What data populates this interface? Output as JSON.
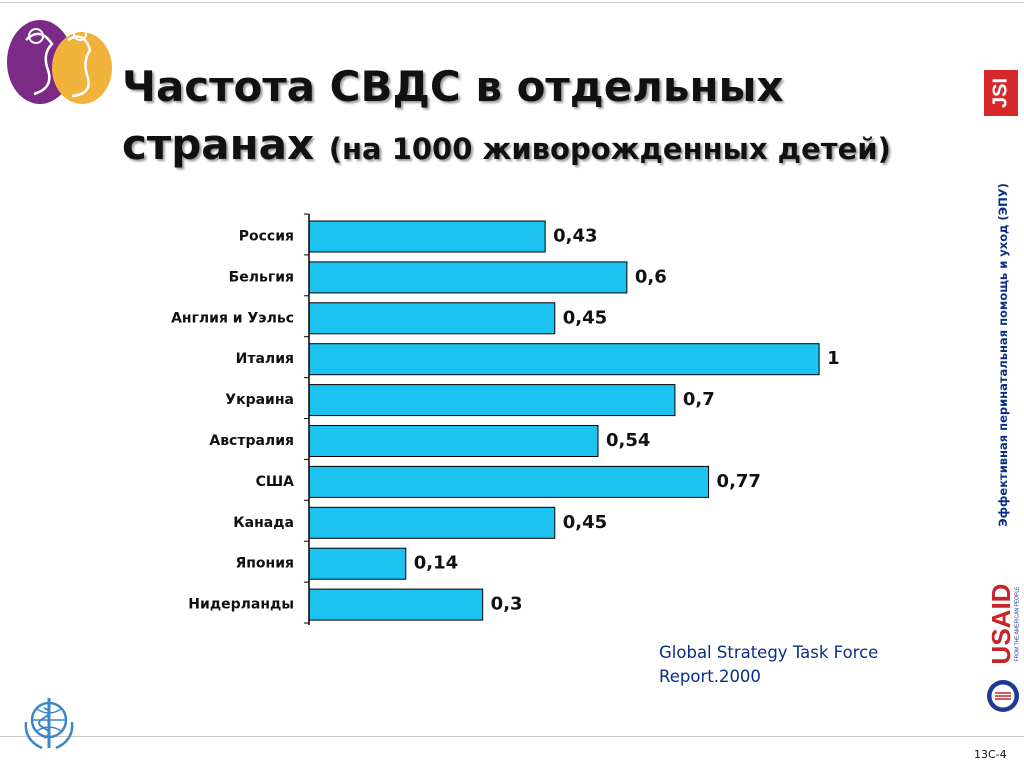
{
  "slide": {
    "title": "Частота СВДС в отдельных",
    "title_line2": "странах",
    "subtitle": "(на 1000 живорожденных детей)",
    "source_line1": "Global Strategy Task Force",
    "source_line2": "Report.2000",
    "side_caption": "Эффективная перинатальная помощь и уход (ЭПУ)",
    "slide_number": "13C-4",
    "logos": {
      "jsi": "JSI",
      "usaid": "USAID",
      "usaid_tagline": "FROM THE AMERICAN PEOPLE"
    }
  },
  "chart_data": {
    "type": "bar",
    "orientation": "horizontal",
    "categories": [
      "Россия",
      "Бельгия",
      "Англия и Уэльс",
      "Италия",
      "Украина",
      "Австралия",
      "США",
      "Канада",
      "Япония",
      "Нидерланды"
    ],
    "values": [
      0.43,
      0.6,
      0.45,
      1,
      0.7,
      0.54,
      0.77,
      0.45,
      0.14,
      0.3
    ],
    "value_labels": [
      "0,43",
      "0,6",
      "0,45",
      "1",
      "0,7",
      "0,54",
      "0,77",
      "0,45",
      "0,14",
      "0,3"
    ],
    "bar_color": "#1dc3f0",
    "grid": false,
    "legend": "none"
  },
  "colors": {
    "accent_blue": "#0b2f87",
    "jsi_red": "#d7292c",
    "who_blue": "#3f86c8",
    "logo_purple": "#7b2b86",
    "logo_gold": "#f2b33d"
  }
}
